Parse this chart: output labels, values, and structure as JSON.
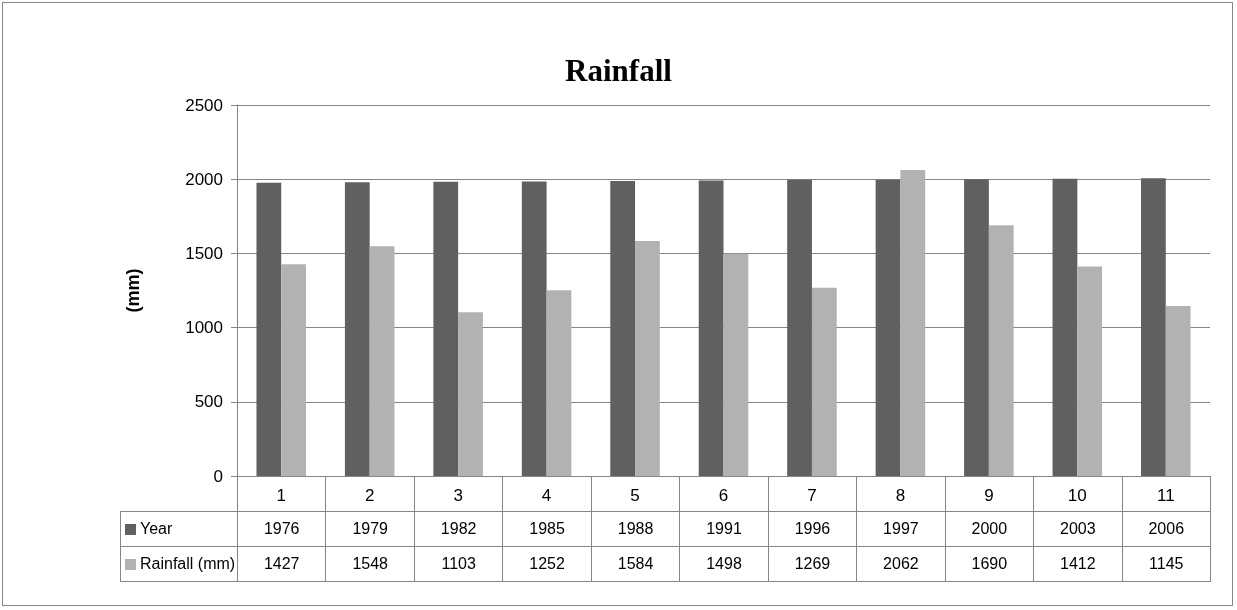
{
  "chart_data": {
    "type": "bar",
    "title": "Rainfall",
    "ylabel": "(mm)",
    "categories": [
      "1",
      "2",
      "3",
      "4",
      "5",
      "6",
      "7",
      "8",
      "9",
      "10",
      "11"
    ],
    "series": [
      {
        "name": "Year",
        "color": "#606060",
        "values": [
          1976,
          1979,
          1982,
          1985,
          1988,
          1991,
          1996,
          1997,
          2000,
          2003,
          2006
        ]
      },
      {
        "name": "Rainfall (mm)",
        "color": "#b2b2b2",
        "values": [
          1427,
          1548,
          1103,
          1252,
          1584,
          1498,
          1269,
          2062,
          1690,
          1412,
          1145
        ]
      }
    ],
    "ylim": [
      0,
      2500
    ],
    "yticks": [
      0,
      500,
      1000,
      1500,
      2000,
      2500
    ],
    "grid": "y",
    "legend": "bottom",
    "data_labels": true
  }
}
